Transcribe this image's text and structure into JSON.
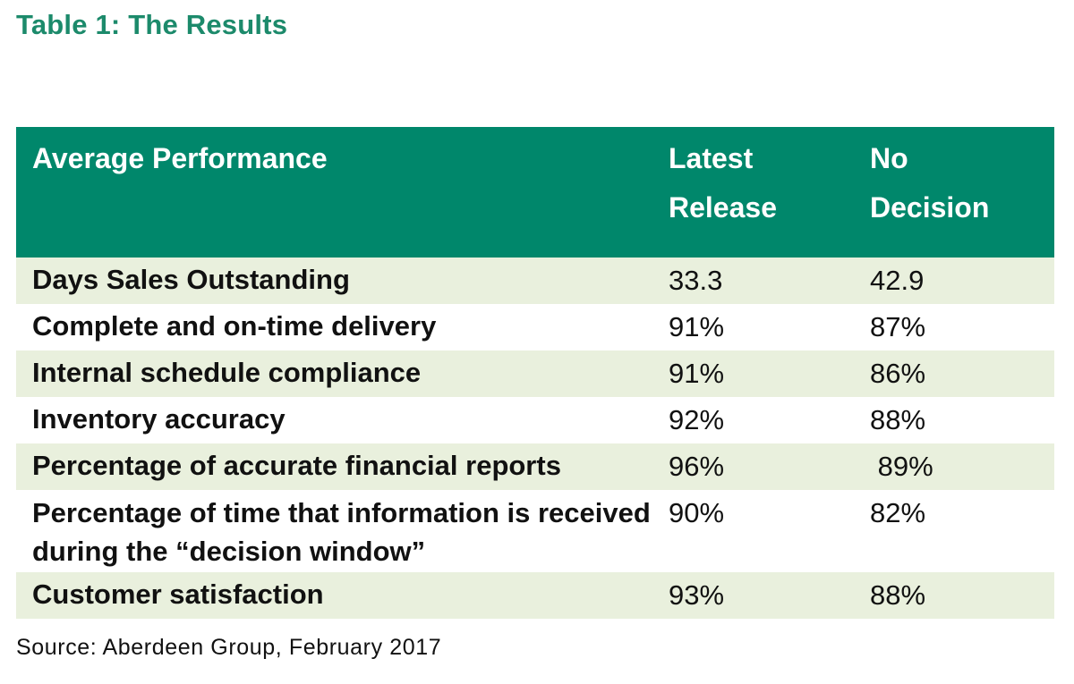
{
  "title": "Table 1: The Results",
  "table": {
    "headers": [
      "Average Performance",
      "Latest Release",
      "No Decision"
    ],
    "rows": [
      {
        "metric": "Days Sales Outstanding",
        "latest": "33.3",
        "no_decision": "42.9"
      },
      {
        "metric": "Complete and on-time delivery",
        "latest": "91%",
        "no_decision": "87%"
      },
      {
        "metric": "Internal schedule compliance",
        "latest": "91%",
        "no_decision": "86%"
      },
      {
        "metric": "Inventory accuracy",
        "latest": "92%",
        "no_decision": "88%"
      },
      {
        "metric": "Percentage of accurate financial reports",
        "latest": "96%",
        "no_decision": " 89%"
      },
      {
        "metric": "Percentage of time that information is received during the “decision window”",
        "latest": "90%",
        "no_decision": "82%"
      },
      {
        "metric": "Customer satisfaction",
        "latest": "93%",
        "no_decision": "88%"
      }
    ]
  },
  "source": "Source: Aberdeen Group, February 2017",
  "colors": {
    "title": "#1c8a6b",
    "header_bg": "#00876b",
    "shade_row": "#e9f0dd"
  }
}
